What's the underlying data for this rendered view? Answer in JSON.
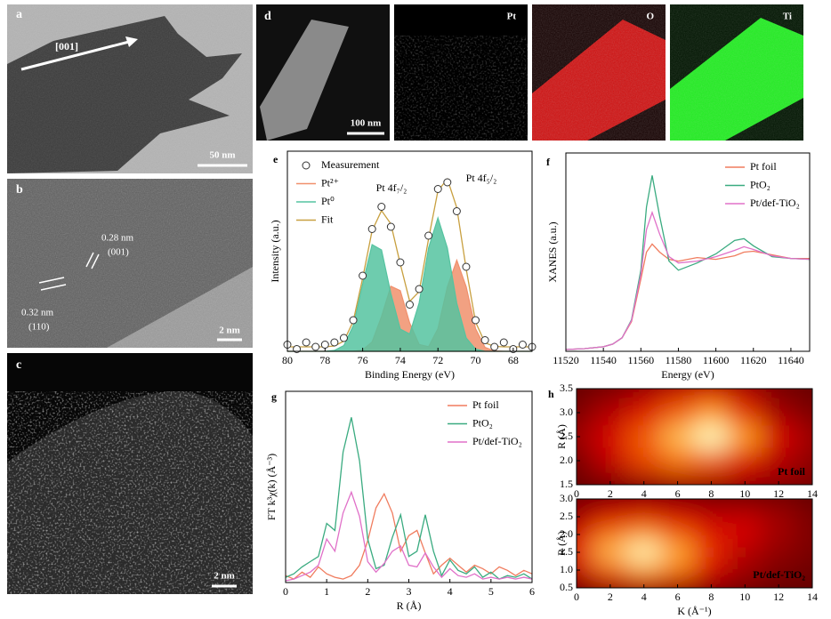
{
  "panels": {
    "a": {
      "label": "a",
      "direction": "[001]",
      "scale_bar": "50 nm"
    },
    "b": {
      "label": "b",
      "spacing_1": "0.28 nm",
      "plane_1": "(001)",
      "spacing_2": "0.32 nm",
      "plane_2": "(110)",
      "scale_bar": "2 nm"
    },
    "c": {
      "label": "c",
      "scale_bar": "2 nm"
    },
    "d": {
      "label": "d",
      "scale_bar": "100 nm",
      "maps": [
        "Pt",
        "O",
        "Ti"
      ]
    }
  },
  "chart_data": [
    {
      "type": "line",
      "label": "e",
      "xlabel": "Binding Energy (eV)",
      "ylabel": "Intensity (a.u.)",
      "legend": "upper left",
      "annotations": [
        "Pt 4f₇/₂",
        "Pt 4f₅/₂"
      ],
      "xlim": [
        80,
        67
      ],
      "ylim": [
        0,
        90
      ],
      "xticks": [
        80,
        78,
        76,
        74,
        72,
        70,
        68
      ],
      "x": [
        80,
        79.5,
        79,
        78.5,
        78,
        77.5,
        77,
        76.5,
        76,
        75.5,
        75,
        74.5,
        74,
        73.5,
        73,
        72.5,
        72,
        71.5,
        71,
        70.5,
        70,
        69.5,
        69,
        68.5,
        68,
        67.5,
        67
      ],
      "series": [
        {
          "name": "Measurement",
          "color": "#333333",
          "style": "markers",
          "values": [
            3,
            1,
            4,
            2,
            3,
            4,
            6,
            14,
            34,
            55,
            65,
            56,
            40,
            21,
            28,
            52,
            73,
            76,
            63,
            38,
            14,
            5,
            2,
            4,
            1,
            3,
            2
          ]
        },
        {
          "name": "Pt²⁺",
          "color": "#f0906c",
          "style": "area",
          "values": [
            0,
            0,
            0,
            0,
            0,
            0,
            0,
            0,
            0.6,
            4.2,
            15.7,
            29.3,
            27.3,
            12.7,
            3.1,
            2.1,
            10.2,
            29,
            41,
            29,
            10.2,
            1.8,
            0.2,
            0,
            0,
            0,
            0
          ]
        },
        {
          "name": "Pt⁰",
          "color": "#55c3a0",
          "style": "area",
          "values": [
            0,
            0,
            0,
            0,
            0,
            0.4,
            2.6,
            11.5,
            30.3,
            48,
            45.6,
            26,
            10,
            7.8,
            21.8,
            46.5,
            60,
            46.5,
            21.6,
            6,
            1,
            0,
            0,
            0,
            0,
            0,
            0
          ]
        },
        {
          "name": "Fit",
          "color": "#c8a040",
          "style": "line",
          "values": [
            2,
            2,
            2,
            2,
            2,
            2.4,
            4.6,
            13.5,
            32.9,
            54.2,
            63.3,
            57.3,
            39.3,
            22.5,
            26.9,
            50.6,
            72.2,
            77.5,
            64.6,
            37,
            13.2,
            3.8,
            2.2,
            2,
            2,
            2,
            2
          ]
        }
      ]
    },
    {
      "type": "line",
      "label": "f",
      "xlabel": "Energy (eV)",
      "ylabel": "XANES (a.u.)",
      "legend": "upper right",
      "xlim": [
        11520,
        11650
      ],
      "ylim": [
        0,
        2.2
      ],
      "xticks": [
        11520,
        11540,
        11560,
        11580,
        11600,
        11620,
        11640
      ],
      "x": [
        11520,
        11530,
        11540,
        11545,
        11550,
        11555,
        11560,
        11563,
        11566,
        11570,
        11575,
        11580,
        11590,
        11600,
        11610,
        11615,
        11620,
        11630,
        11640,
        11650
      ],
      "series": [
        {
          "name": "Pt foil",
          "color": "#f07c5e",
          "style": "line",
          "values": [
            0.02,
            0.03,
            0.05,
            0.08,
            0.15,
            0.33,
            0.8,
            1.1,
            1.19,
            1.1,
            1.02,
            1.0,
            1.04,
            1.02,
            1.06,
            1.1,
            1.11,
            1.07,
            1.03,
            1.03
          ]
        },
        {
          "name": "PtO₂",
          "color": "#3aab80",
          "style": "line",
          "values": [
            0.02,
            0.03,
            0.05,
            0.08,
            0.15,
            0.35,
            0.9,
            1.6,
            1.95,
            1.5,
            1.0,
            0.9,
            0.98,
            1.08,
            1.23,
            1.25,
            1.17,
            1.05,
            1.03,
            1.02
          ]
        },
        {
          "name": "Pt/def-TiO₂",
          "color": "#e070c8",
          "style": "line",
          "values": [
            0.02,
            0.03,
            0.05,
            0.08,
            0.15,
            0.34,
            0.85,
            1.35,
            1.54,
            1.3,
            1.05,
            0.98,
            1.0,
            1.05,
            1.12,
            1.16,
            1.13,
            1.06,
            1.03,
            1.02
          ]
        }
      ]
    },
    {
      "type": "line",
      "label": "g",
      "xlabel": "R (Å)",
      "ylabel": "FT k³χ(k) (Å⁻³)",
      "legend": "upper right",
      "xlim": [
        0,
        6
      ],
      "ylim": [
        0,
        11
      ],
      "xticks": [
        0,
        1,
        2,
        3,
        4,
        5,
        6
      ],
      "x": [
        0,
        0.2,
        0.4,
        0.6,
        0.8,
        1,
        1.2,
        1.4,
        1.6,
        1.8,
        2,
        2.2,
        2.4,
        2.6,
        2.8,
        3,
        3.2,
        3.4,
        3.6,
        3.8,
        4,
        4.2,
        4.4,
        4.6,
        4.8,
        5,
        5.2,
        5.4,
        5.6,
        5.8,
        6
      ],
      "series": [
        {
          "name": "Pt foil",
          "color": "#f07c5e",
          "style": "line",
          "values": [
            0.4,
            0.2,
            0.6,
            0.3,
            0.9,
            0.5,
            0.3,
            0.2,
            0.4,
            1.0,
            2.4,
            4.3,
            5.1,
            4.0,
            1.8,
            2.7,
            3.0,
            1.7,
            0.5,
            1.0,
            1.4,
            1.0,
            0.6,
            1.0,
            0.8,
            0.5,
            0.9,
            0.7,
            0.4,
            0.7,
            0.5
          ]
        },
        {
          "name": "PtO₂",
          "color": "#3aab80",
          "style": "line",
          "values": [
            0.3,
            0.5,
            0.9,
            1.2,
            1.5,
            3.4,
            3.0,
            7.5,
            9.5,
            7.0,
            2.5,
            0.8,
            1.0,
            2.6,
            3.9,
            1.5,
            1.8,
            3.9,
            1.8,
            0.4,
            1.3,
            0.7,
            0.5,
            0.9,
            0.3,
            0.6,
            0.2,
            0.4,
            0.3,
            0.5,
            0.2
          ]
        },
        {
          "name": "Pt/def-TiO₂",
          "color": "#e070c8",
          "style": "line",
          "values": [
            0.1,
            0.2,
            0.4,
            0.6,
            1.0,
            2.5,
            1.8,
            4.0,
            5.2,
            3.8,
            1.2,
            0.6,
            1.1,
            1.8,
            2.1,
            1.0,
            0.9,
            1.7,
            0.9,
            0.3,
            0.8,
            0.4,
            0.3,
            0.5,
            0.2,
            0.3,
            0.2,
            0.3,
            0.2,
            0.3,
            0.2
          ]
        }
      ]
    },
    {
      "type": "heatmap",
      "label": "h",
      "ylabel": "R (Å)",
      "annotation": "Pt foil",
      "colormap": "hot",
      "xlim": [
        0,
        14
      ],
      "ylim": [
        1.5,
        3.5
      ],
      "xticks": [
        0,
        2,
        4,
        6,
        8,
        10,
        12,
        14
      ],
      "yticks": [
        1.5,
        {
          "value": 2,
          "label": "2.0"
        },
        2.5,
        {
          "value": 3,
          "label": "3.0"
        },
        3.5
      ],
      "x": [
        0,
        2,
        4,
        6,
        8,
        10,
        12,
        14
      ],
      "y": [
        1.5,
        2,
        2.5,
        3,
        3.5
      ],
      "z": [
        [
          0.05,
          0.1,
          0.15,
          0.2,
          0.2,
          0.2,
          0.15,
          0.1
        ],
        [
          0.1,
          0.3,
          0.5,
          0.6,
          0.55,
          0.4,
          0.25,
          0.15
        ],
        [
          0.2,
          0.35,
          0.55,
          0.8,
          1.0,
          0.7,
          0.35,
          0.2
        ],
        [
          0.1,
          0.25,
          0.4,
          0.55,
          0.7,
          0.45,
          0.2,
          0.1
        ],
        [
          0.05,
          0.1,
          0.2,
          0.3,
          0.35,
          0.25,
          0.1,
          0.05
        ]
      ]
    },
    {
      "type": "heatmap",
      "xlabel": "K (Å⁻¹)",
      "ylabel": "R (Å)",
      "annotation": "Pt/def-TiO₂",
      "colormap": "hot",
      "xlim": [
        0,
        14
      ],
      "ylim": [
        0.5,
        3
      ],
      "xticks": [
        0,
        2,
        4,
        6,
        8,
        10,
        12,
        14
      ],
      "yticks": [
        0.5,
        {
          "value": 1,
          "label": "1.0"
        },
        1.5,
        {
          "value": 2,
          "label": "2.0"
        },
        2.5,
        {
          "value": 3,
          "label": "3.0"
        }
      ],
      "x": [
        0,
        2,
        4,
        6,
        8,
        10,
        12,
        14
      ],
      "y": [
        0.5,
        1,
        1.5,
        2,
        2.5,
        3
      ],
      "z": [
        [
          0.1,
          0.2,
          0.25,
          0.2,
          0.15,
          0.1,
          0.05,
          0.05
        ],
        [
          0.3,
          0.55,
          0.7,
          0.6,
          0.35,
          0.2,
          0.1,
          0.05
        ],
        [
          0.45,
          0.8,
          1.0,
          0.75,
          0.45,
          0.25,
          0.15,
          0.1
        ],
        [
          0.35,
          0.6,
          0.7,
          0.55,
          0.4,
          0.35,
          0.2,
          0.1
        ],
        [
          0.2,
          0.35,
          0.4,
          0.35,
          0.3,
          0.3,
          0.2,
          0.1
        ],
        [
          0.1,
          0.15,
          0.2,
          0.15,
          0.1,
          0.1,
          0.1,
          0.05
        ]
      ]
    }
  ]
}
